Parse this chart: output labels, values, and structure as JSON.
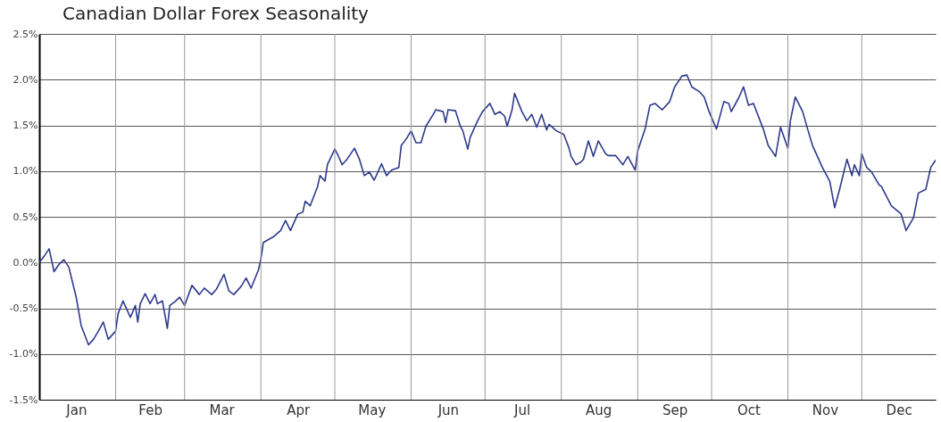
{
  "chart_data": {
    "type": "line",
    "title": "Canadian Dollar Forex Seasonality",
    "x": [
      "--01-01",
      "--01-03",
      "--01-05",
      "--01-07",
      "--01-09",
      "--01-11",
      "--01-13",
      "--01-16",
      "--01-18",
      "--01-21",
      "--01-23",
      "--01-25",
      "--01-27",
      "--01-29",
      "--02-01",
      "--02-02",
      "--02-04",
      "--02-06",
      "--02-07",
      "--02-09",
      "--02-10",
      "--02-11",
      "--02-13",
      "--02-15",
      "--02-17",
      "--02-18",
      "--02-20",
      "--02-22",
      "--02-23",
      "--02-25",
      "--02-27",
      "--03-01",
      "--03-04",
      "--03-07",
      "--03-09",
      "--03-12",
      "--03-14",
      "--03-17",
      "--03-19",
      "--03-21",
      "--03-24",
      "--03-26",
      "--03-28",
      "--03-31",
      "--04-01",
      "--04-02",
      "--04-06",
      "--04-09",
      "--04-11",
      "--04-13",
      "--04-16",
      "--04-18",
      "--04-19",
      "--04-21",
      "--04-24",
      "--04-25",
      "--04-27",
      "--04-28",
      "--05-01",
      "--05-02",
      "--05-04",
      "--05-06",
      "--05-09",
      "--05-11",
      "--05-13",
      "--05-15",
      "--05-17",
      "--05-20",
      "--05-22",
      "--05-24",
      "--05-27",
      "--05-28",
      "--05-30",
      "--06-01",
      "--06-03",
      "--06-05",
      "--06-07",
      "--06-10",
      "--06-11",
      "--06-14",
      "--06-15",
      "--06-16",
      "--06-19",
      "--06-21",
      "--06-22",
      "--06-24",
      "--06-25",
      "--06-28",
      "--06-30",
      "--07-03",
      "--07-05",
      "--07-07",
      "--07-09",
      "--07-10",
      "--07-12",
      "--07-13",
      "--07-16",
      "--07-18",
      "--07-20",
      "--07-22",
      "--07-24",
      "--07-26",
      "--07-27",
      "--07-30",
      "--08-02",
      "--08-04",
      "--08-05",
      "--08-07",
      "--08-09",
      "--08-10",
      "--08-12",
      "--08-14",
      "--08-16",
      "--08-19",
      "--08-20",
      "--08-23",
      "--08-26",
      "--08-28",
      "--08-31",
      "--09-01",
      "--09-04",
      "--09-06",
      "--09-08",
      "--09-11",
      "--09-14",
      "--09-16",
      "--09-19",
      "--09-21",
      "--09-23",
      "--09-26",
      "--09-28",
      "--09-30",
      "--10-03",
      "--10-06",
      "--10-08",
      "--10-09",
      "--10-12",
      "--10-14",
      "--10-16",
      "--10-18",
      "--10-19",
      "--10-22",
      "--10-24",
      "--10-27",
      "--10-29",
      "--11-01",
      "--11-02",
      "--11-04",
      "--11-07",
      "--11-09",
      "--11-11",
      "--11-15",
      "--11-18",
      "--11-20",
      "--11-22",
      "--11-25",
      "--11-27",
      "--11-28",
      "--11-30",
      "--12-01",
      "--12-03",
      "--12-05",
      "--12-08",
      "--12-09",
      "--12-13",
      "--12-17",
      "--12-19",
      "--12-22",
      "--12-24",
      "--12-27",
      "--12-29",
      "--12-31"
    ],
    "series": [
      {
        "color": "#2e3a8c",
        "values": [
          0.0,
          0.07,
          0.15,
          -0.1,
          -0.02,
          0.03,
          -0.05,
          -0.38,
          -0.69,
          -0.9,
          -0.84,
          -0.75,
          -0.65,
          -0.84,
          -0.75,
          -0.56,
          -0.42,
          -0.54,
          -0.6,
          -0.47,
          -0.65,
          -0.45,
          -0.34,
          -0.45,
          -0.35,
          -0.45,
          -0.42,
          -0.72,
          -0.47,
          -0.43,
          -0.38,
          -0.47,
          -0.25,
          -0.35,
          -0.28,
          -0.35,
          -0.29,
          -0.13,
          -0.31,
          -0.35,
          -0.26,
          -0.17,
          -0.28,
          -0.08,
          0.04,
          0.22,
          0.28,
          0.35,
          0.46,
          0.35,
          0.53,
          0.55,
          0.67,
          0.62,
          0.83,
          0.95,
          0.89,
          1.07,
          1.24,
          1.19,
          1.07,
          1.13,
          1.25,
          1.13,
          0.95,
          0.99,
          0.9,
          1.08,
          0.95,
          1.01,
          1.04,
          1.28,
          1.35,
          1.44,
          1.31,
          1.31,
          1.49,
          1.62,
          1.67,
          1.65,
          1.53,
          1.67,
          1.66,
          1.49,
          1.44,
          1.24,
          1.37,
          1.55,
          1.65,
          1.74,
          1.62,
          1.65,
          1.6,
          1.49,
          1.67,
          1.85,
          1.65,
          1.55,
          1.62,
          1.48,
          1.62,
          1.45,
          1.51,
          1.44,
          1.4,
          1.26,
          1.16,
          1.07,
          1.1,
          1.13,
          1.33,
          1.16,
          1.33,
          1.19,
          1.17,
          1.17,
          1.07,
          1.16,
          1.01,
          1.22,
          1.46,
          1.72,
          1.74,
          1.67,
          1.76,
          1.92,
          2.04,
          2.05,
          1.92,
          1.87,
          1.81,
          1.65,
          1.46,
          1.76,
          1.74,
          1.65,
          1.8,
          1.92,
          1.72,
          1.74,
          1.67,
          1.46,
          1.28,
          1.16,
          1.48,
          1.25,
          1.55,
          1.81,
          1.65,
          1.46,
          1.28,
          1.04,
          0.89,
          0.6,
          0.8,
          1.13,
          0.95,
          1.07,
          0.95,
          1.19,
          1.04,
          0.99,
          0.85,
          0.83,
          0.62,
          0.53,
          0.35,
          0.49,
          0.76,
          0.8,
          1.04,
          1.12
        ]
      }
    ],
    "xlim": [
      "--01-01",
      "--12-31"
    ],
    "xticks": [
      {
        "value": "--01-16",
        "label": "Jan"
      },
      {
        "value": "--02-15",
        "label": "Feb"
      },
      {
        "value": "--03-16",
        "label": "Mar"
      },
      {
        "value": "--04-16",
        "label": "Apr"
      },
      {
        "value": "--05-16",
        "label": "May"
      },
      {
        "value": "--06-16",
        "label": "Jun"
      },
      {
        "value": "--07-16",
        "label": "Jul"
      },
      {
        "value": "--08-16",
        "label": "Aug"
      },
      {
        "value": "--09-16",
        "label": "Sep"
      },
      {
        "value": "--10-16",
        "label": "Oct"
      },
      {
        "value": "--11-16",
        "label": "Nov"
      },
      {
        "value": "--12-16",
        "label": "Dec"
      }
    ],
    "ylim": [
      -1.5,
      2.5
    ],
    "yticks": [
      {
        "value": -1.5,
        "label": "-1.5%"
      },
      {
        "value": -1.0,
        "label": "-1.0%"
      },
      {
        "value": -0.5,
        "label": "-0.5%"
      },
      {
        "value": 0,
        "label": "0.0%"
      },
      {
        "value": 0.5,
        "label": "0.5%"
      },
      {
        "value": 1.0,
        "label": "1.0%"
      },
      {
        "value": 1.5,
        "label": "1.5%"
      },
      {
        "value": 2.0,
        "label": "2.0%"
      },
      {
        "value": 2.5,
        "label": "2.5%"
      }
    ],
    "ref_lines": [
      {
        "axis": "x",
        "value": "--02-01",
        "color": "#9a9a9a"
      },
      {
        "axis": "x",
        "value": "--03-01",
        "color": "#9a9a9a"
      },
      {
        "axis": "x",
        "value": "--04-01",
        "color": "#9a9a9a"
      },
      {
        "axis": "x",
        "value": "--05-01",
        "color": "#9a9a9a"
      },
      {
        "axis": "x",
        "value": "--06-01",
        "color": "#9a9a9a"
      },
      {
        "axis": "x",
        "value": "--07-01",
        "color": "#9a9a9a"
      },
      {
        "axis": "x",
        "value": "--08-01",
        "color": "#9a9a9a"
      },
      {
        "axis": "x",
        "value": "--09-01",
        "color": "#9a9a9a"
      },
      {
        "axis": "x",
        "value": "--10-01",
        "color": "#9a9a9a"
      },
      {
        "axis": "x",
        "value": "--11-01",
        "color": "#9a9a9a"
      },
      {
        "axis": "x",
        "value": "--12-01",
        "color": "#9a9a9a"
      }
    ],
    "grid": "y"
  }
}
